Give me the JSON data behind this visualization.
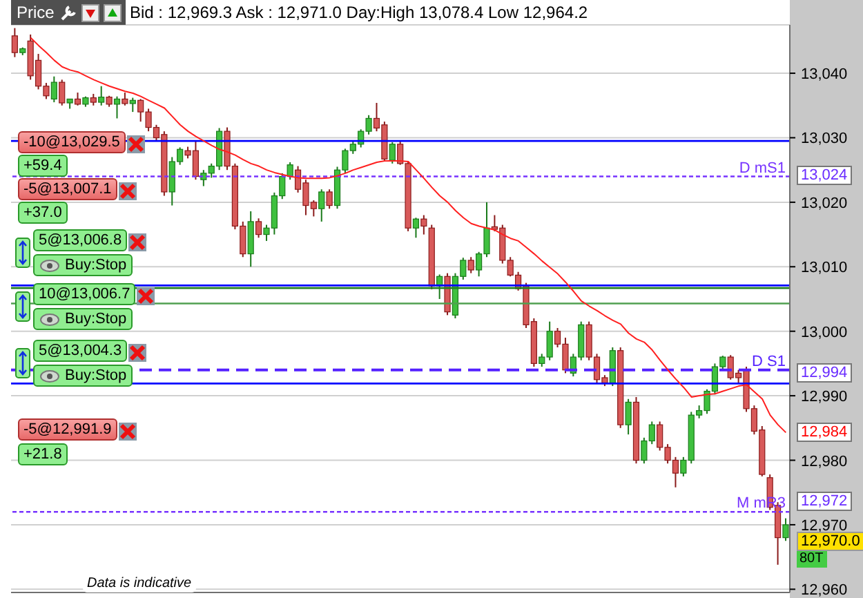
{
  "chart_data": {
    "type": "candlestick",
    "title": "Price",
    "subtitle": "Bid : 12,969.3 Ask : 12,971.0 Day:High 13,078.4 Low 12,964.2",
    "categories": [
      null,
      null,
      null,
      null,
      null,
      null,
      null,
      null,
      null,
      null,
      null,
      null,
      null,
      null,
      null,
      null,
      null,
      null,
      null,
      null,
      null,
      null,
      null,
      null,
      null,
      null,
      null,
      null,
      null,
      null,
      null,
      null,
      null,
      null,
      null,
      null,
      null,
      null,
      null,
      null,
      null,
      null,
      null,
      null,
      null,
      null,
      null,
      null,
      null,
      null,
      null,
      null,
      null,
      null,
      null,
      null,
      null,
      null,
      null,
      null,
      null,
      null,
      null,
      null,
      null,
      null,
      null,
      null,
      null,
      null,
      null,
      null,
      null,
      null,
      null,
      null,
      null,
      null,
      null,
      null,
      null,
      null,
      null,
      null,
      null,
      null,
      null,
      null,
      null,
      null,
      null,
      null,
      null,
      null,
      null,
      null,
      null,
      null,
      null
    ],
    "ohlc": [
      [
        13045.8,
        13047,
        13042.5,
        13043.2
      ],
      [
        13043.2,
        13044,
        13042.8,
        13043.8
      ],
      [
        13045,
        13046,
        13039,
        13039.6
      ],
      [
        13042,
        13043,
        13037.5,
        13038
      ],
      [
        13038,
        13038.5,
        13036,
        13036.5
      ],
      [
        13036,
        13039.5,
        13035.5,
        13038.6
      ],
      [
        13038.6,
        13039,
        13035,
        13035.4
      ],
      [
        13035.4,
        13036,
        13034.5,
        13036
      ],
      [
        13036,
        13037,
        13035,
        13035.2
      ],
      [
        13035.2,
        13036.4,
        13034.8,
        13036.2
      ],
      [
        13036.2,
        13036.8,
        13035,
        13035.5
      ],
      [
        13035.5,
        13038,
        13035,
        13036.3
      ],
      [
        13036.3,
        13036.5,
        13034.8,
        13035.2
      ],
      [
        13035.2,
        13036.4,
        13033,
        13036
      ],
      [
        13036,
        13037,
        13035,
        13035.3
      ],
      [
        13035.3,
        13036.2,
        13034,
        13035.8
      ],
      [
        13035.8,
        13036,
        13032.5,
        13034
      ],
      [
        13034,
        13034.5,
        13031,
        13031.6
      ],
      [
        13031.6,
        13032,
        13029.5,
        13030
      ],
      [
        13030.5,
        13031,
        13021,
        13021.6
      ],
      [
        13021.6,
        13027,
        13019.5,
        13026.3
      ],
      [
        13026.3,
        13028.5,
        13025.8,
        13028.2
      ],
      [
        13028,
        13028.6,
        13026.8,
        13027.3
      ],
      [
        13028,
        13029.5,
        13023.5,
        13024
      ],
      [
        13023.5,
        13025,
        13022.5,
        13024.5
      ],
      [
        13024.5,
        13026,
        13023.8,
        13025.6
      ],
      [
        13025.6,
        13031.5,
        13025,
        13031
      ],
      [
        13031,
        13031.6,
        13025,
        13025.6
      ],
      [
        13025.6,
        13026,
        13015.8,
        13016.3
      ],
      [
        13016.3,
        13017,
        13011.5,
        13012
      ],
      [
        13012,
        13018.6,
        13010,
        13017
      ],
      [
        13017,
        13017.5,
        13014.5,
        13015
      ],
      [
        13015,
        13016.5,
        13014,
        13016
      ],
      [
        13016,
        13021.5,
        13015,
        13021
      ],
      [
        13021,
        13024.5,
        13020.5,
        13024
      ],
      [
        13024,
        13026.2,
        13023.5,
        13025.8
      ],
      [
        13025,
        13025.6,
        13021.5,
        13022
      ],
      [
        13023,
        13023.5,
        13018,
        13019.5
      ],
      [
        13020,
        13020.3,
        13017.8,
        13019
      ],
      [
        13019,
        13022,
        13017,
        13021.6
      ],
      [
        13021.6,
        13022,
        13019,
        13019.5
      ],
      [
        13019.5,
        13025.5,
        13019,
        13025
      ],
      [
        13025,
        13028.3,
        13024.5,
        13028
      ],
      [
        13028,
        13029.5,
        13027.5,
        13029
      ],
      [
        13029,
        13031.3,
        13028.5,
        13031
      ],
      [
        13031,
        13033.5,
        13030.5,
        13033
      ],
      [
        13033,
        13035.4,
        13031,
        13031.5
      ],
      [
        13032,
        13032.5,
        13026.3,
        13026.7
      ],
      [
        13026.5,
        13029.3,
        13026,
        13029
      ],
      [
        13029,
        13029.5,
        13025.8,
        13026
      ],
      [
        13026,
        13026.4,
        13015.5,
        13016
      ],
      [
        13016,
        13017.6,
        13014.5,
        13017.4
      ],
      [
        13017.4,
        13018,
        13015,
        13016.3
      ],
      [
        13016,
        13016.5,
        13006.5,
        13007
      ],
      [
        13007,
        13008.8,
        13005,
        13008.5
      ],
      [
        13008.5,
        13009,
        13002.5,
        13003
      ],
      [
        13002.5,
        13009,
        13002,
        13008.5
      ],
      [
        13008.5,
        13011.4,
        13008,
        13011
      ],
      [
        13011,
        13011.5,
        13009,
        13009.5
      ],
      [
        13009.5,
        13012.3,
        13008.5,
        13012
      ],
      [
        13012,
        13020,
        13011.5,
        13016
      ],
      [
        13016.2,
        13018,
        13015.5,
        13015.8
      ],
      [
        13016,
        13016.5,
        13010.5,
        13011
      ],
      [
        13011,
        13011.5,
        13008.5,
        13008.7
      ],
      [
        13008.7,
        13009.2,
        13006.3,
        13006.6
      ],
      [
        13007,
        13007.5,
        13000.5,
        13001
      ],
      [
        13001.5,
        13002,
        12994.5,
        12995
      ],
      [
        12995,
        12996.5,
        12994.5,
        12996
      ],
      [
        12996,
        13001.5,
        12995.5,
        13000
      ],
      [
        13000,
        13000.5,
        12997.5,
        12998
      ],
      [
        12998,
        12999,
        12993.5,
        12994
      ],
      [
        12993.5,
        12996.5,
        12993,
        12996
      ],
      [
        12996,
        13001.5,
        12995.5,
        13001
      ],
      [
        13001,
        13001.5,
        12995.5,
        12996
      ],
      [
        12996,
        12996.5,
        12992,
        12992.5
      ],
      [
        12992.8,
        12993.2,
        12991.5,
        12992
      ],
      [
        12992,
        12997.5,
        12991.5,
        12997
      ],
      [
        12997,
        12997.5,
        12985,
        12985.5
      ],
      [
        12985.5,
        12989.5,
        12984,
        12989
      ],
      [
        12989,
        12989.8,
        12979.5,
        12980
      ],
      [
        12980,
        12983.5,
        12979.5,
        12983
      ],
      [
        12983,
        12986,
        12982.5,
        12985.5
      ],
      [
        12985.5,
        12986,
        12981.5,
        12982
      ],
      [
        12982,
        12982.5,
        12979.5,
        12980
      ],
      [
        12980,
        12980.5,
        12975.8,
        12978
      ],
      [
        12978,
        12980.5,
        12977.5,
        12980
      ],
      [
        12980,
        12987.5,
        12979.5,
        12987
      ],
      [
        12987,
        12988.5,
        12986.5,
        12987.7
      ],
      [
        12987.7,
        12991,
        12987.2,
        12990.7
      ],
      [
        12990.7,
        12995,
        12990.2,
        12994.5
      ],
      [
        12994.5,
        12996.2,
        12994,
        12996
      ],
      [
        12996,
        12996.3,
        12992.5,
        12992.8
      ],
      [
        12993.5,
        12994,
        12992,
        12992.8
      ],
      [
        12994,
        12994.5,
        12987.5,
        12988
      ],
      [
        12988,
        12988.5,
        12984,
        12984.5
      ],
      [
        12984.7,
        12985.3,
        12977.5,
        12977.8
      ],
      [
        12977.3,
        12977.8,
        12972.3,
        12972.7
      ],
      [
        12973,
        12973.5,
        12963.8,
        12968
      ],
      [
        12968,
        12971,
        12967.5,
        12970
      ]
    ],
    "series": [
      {
        "type": "line",
        "color": "#ff2020",
        "values": [
          null,
          null,
          13045.5,
          13044.3,
          13043.2,
          13042,
          13041,
          13040.5,
          13040.2,
          13039.6,
          13039,
          13038.5,
          13038,
          13037.6,
          13037.2,
          13036.9,
          13036.4,
          13035.8,
          13035.2,
          13034.6,
          13033.3,
          13032,
          13031,
          13030.2,
          13029.5,
          13028.8,
          13028.2,
          13027.8,
          13027.3,
          13026.6,
          13026,
          13025.6,
          13025,
          13024.6,
          13024.3,
          13024,
          13023.8,
          13023.7,
          13023.7,
          13023.7,
          13023.8,
          13024.1,
          13024.5,
          13025,
          13025.4,
          13025.8,
          13026.2,
          13026.4,
          13026.4,
          13026.4,
          13026.3,
          13025,
          13023.7,
          13022.3,
          13021,
          13020,
          13018.7,
          13017.6,
          13016.7,
          13016.3,
          13016,
          13015.7,
          13015,
          13014.4,
          13014,
          13013,
          13012,
          13010.9,
          13009.9,
          13008.9,
          13007.6,
          13006.2,
          13004.7,
          13003.9,
          13003.2,
          13002.4,
          13001.7,
          13001.1,
          12999.7,
          12998.8,
          12998.3,
          12997.1,
          12995.5,
          12994,
          12992.6,
          12991.3,
          12989.8,
          12990,
          12990.2,
          12990.3,
          12990.7,
          12991.1,
          12991.5,
          12991.7,
          12990.6,
          12989.5,
          12987,
          12985.5,
          12984.3
        ]
      }
    ],
    "ylim": [
      12959.5,
      13047.5
    ],
    "yticks": [
      {
        "value": 12960,
        "label": "12,960"
      },
      {
        "value": 12970,
        "label": "12,970"
      },
      {
        "value": 12980,
        "label": "12,980"
      },
      {
        "value": 12990,
        "label": "12,990"
      },
      {
        "value": 13000,
        "label": "13,000"
      },
      {
        "value": 13010,
        "label": "13,010"
      },
      {
        "value": 13020,
        "label": "13,020"
      },
      {
        "value": 13030,
        "label": "13,030"
      },
      {
        "value": 13040,
        "label": "13,040"
      }
    ],
    "grid": "y",
    "tick_labels": "y",
    "ref_lines": [
      {
        "axis": "y",
        "value": 13029.5,
        "color": "#0000ff",
        "line_style": "solid"
      },
      {
        "axis": "y",
        "value": 13024,
        "label": "D mS1",
        "color": "#7733ff",
        "line_style": "dotted"
      },
      {
        "axis": "y",
        "value": 13007.1,
        "color": "#0000ff",
        "line_style": "solid"
      },
      {
        "axis": "y",
        "value": 13006.7,
        "color": "#208020",
        "line_style": "solid"
      },
      {
        "axis": "y",
        "value": 13004.3,
        "color": "#50a050",
        "line_style": "solid"
      },
      {
        "axis": "y",
        "value": 12994,
        "label": "D S1",
        "color": "#5522ff",
        "line_style": "dashed"
      },
      {
        "axis": "y",
        "value": 12991.9,
        "color": "#0000ff",
        "line_style": "solid"
      },
      {
        "axis": "y",
        "value": 12972,
        "label": "M mR3",
        "color": "#7733ff",
        "line_style": "dotted"
      }
    ],
    "annotations": [
      "-10@13,029.5",
      "+59.4",
      "-5@13,007.1",
      "+37.0",
      "5@13,006.8",
      "Buy:Stop",
      "10@13,006.7",
      "Buy:Stop",
      "5@13,004.3",
      "Buy:Stop",
      "-5@12,991.9",
      "+21.8",
      "80T",
      "Data is indicative",
      "13,024",
      "12,994",
      "12,984",
      "12,972",
      "12,970.0"
    ]
  }
}
